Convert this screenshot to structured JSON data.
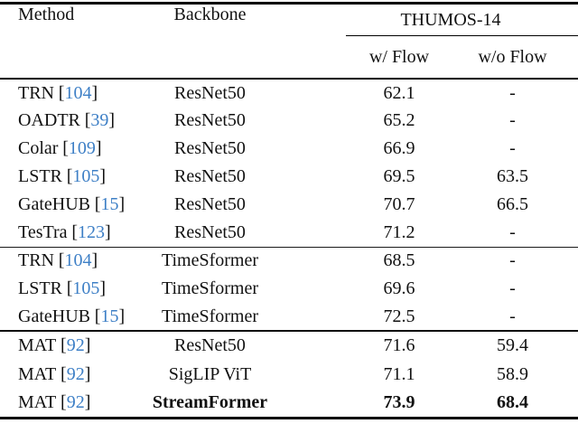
{
  "punct": {
    "cite_open": "[",
    "cite_close": "]"
  },
  "colors": {
    "citation_link": "#3d7fc6",
    "rule": "#000000",
    "text": "#111111",
    "background": "#ffffff"
  },
  "table": {
    "headers": {
      "method": "Method",
      "backbone": "Backbone",
      "dataset_group": "THUMOS-14",
      "w_flow": "w/ Flow",
      "wo_flow": "w/o Flow"
    },
    "groups": [
      {
        "rows": [
          {
            "method": "TRN",
            "cite": "104",
            "backbone": "ResNet50",
            "w_flow": "62.1",
            "wo_flow": "-"
          },
          {
            "method": "OADTR",
            "cite": "39",
            "backbone": "ResNet50",
            "w_flow": "65.2",
            "wo_flow": "-"
          },
          {
            "method": "Colar",
            "cite": "109",
            "backbone": "ResNet50",
            "w_flow": "66.9",
            "wo_flow": "-"
          },
          {
            "method": "LSTR",
            "cite": "105",
            "backbone": "ResNet50",
            "w_flow": "69.5",
            "wo_flow": "63.5"
          },
          {
            "method": "GateHUB",
            "cite": "15",
            "backbone": "ResNet50",
            "w_flow": "70.7",
            "wo_flow": "66.5"
          },
          {
            "method": "TesTra",
            "cite": "123",
            "backbone": "ResNet50",
            "w_flow": "71.2",
            "wo_flow": "-"
          }
        ]
      },
      {
        "rows": [
          {
            "method": "TRN",
            "cite": "104",
            "backbone": "TimeSformer",
            "w_flow": "68.5",
            "wo_flow": "-"
          },
          {
            "method": "LSTR",
            "cite": "105",
            "backbone": "TimeSformer",
            "w_flow": "69.6",
            "wo_flow": "-"
          },
          {
            "method": "GateHUB",
            "cite": "15",
            "backbone": "TimeSformer",
            "w_flow": "72.5",
            "wo_flow": "-"
          }
        ]
      },
      {
        "rows": [
          {
            "method": "MAT",
            "cite": "92",
            "backbone": "ResNet50",
            "w_flow": "71.6",
            "wo_flow": "59.4"
          },
          {
            "method": "MAT",
            "cite": "92",
            "backbone": "SigLIP ViT",
            "w_flow": "71.1",
            "wo_flow": "58.9"
          },
          {
            "method": "MAT",
            "cite": "92",
            "backbone": "StreamFormer",
            "w_flow": "73.9",
            "wo_flow": "68.4",
            "best": true
          }
        ]
      }
    ]
  }
}
